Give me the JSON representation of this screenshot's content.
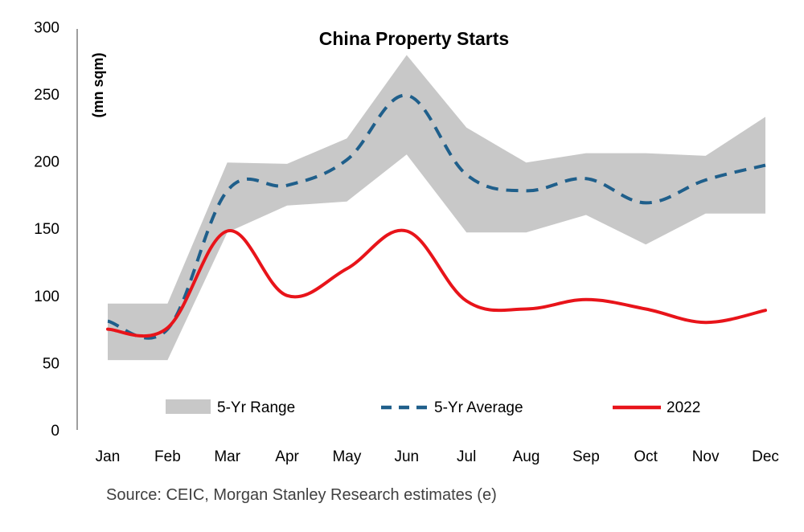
{
  "chart_data": {
    "type": "line",
    "title": "China Property Starts",
    "ylabel": "(mn sqm)",
    "xlabel": "",
    "ylim": [
      0,
      300
    ],
    "yticks": [
      "0",
      "50",
      "100",
      "150",
      "200",
      "250",
      "300"
    ],
    "categories": [
      "Jan",
      "Feb",
      "Mar",
      "Apr",
      "May",
      "Jun",
      "Jul",
      "Aug",
      "Sep",
      "Oct",
      "Nov",
      "Dec"
    ],
    "range": {
      "name": "5-Yr Range",
      "low": [
        52,
        52,
        147,
        167,
        170,
        205,
        147,
        147,
        160,
        138,
        161,
        161
      ],
      "high": [
        94,
        94,
        199,
        198,
        217,
        279,
        225,
        199,
        206,
        206,
        204,
        233
      ]
    },
    "series": [
      {
        "name": "5-Yr Average",
        "values": [
          81,
          75,
          178,
          182,
          201,
          249,
          190,
          178,
          187,
          169,
          186,
          197
        ]
      },
      {
        "name": "2022",
        "values": [
          75,
          76,
          148,
          100,
          120,
          148,
          96,
          90,
          97,
          90,
          80,
          89
        ]
      }
    ],
    "legend_position": "bottom",
    "grid": false,
    "colors": {
      "range": "#c8c8c8",
      "average": "#1f5f8b",
      "current": "#e8141a"
    }
  },
  "source": "Source: CEIC, Morgan Stanley Research estimates (e)"
}
